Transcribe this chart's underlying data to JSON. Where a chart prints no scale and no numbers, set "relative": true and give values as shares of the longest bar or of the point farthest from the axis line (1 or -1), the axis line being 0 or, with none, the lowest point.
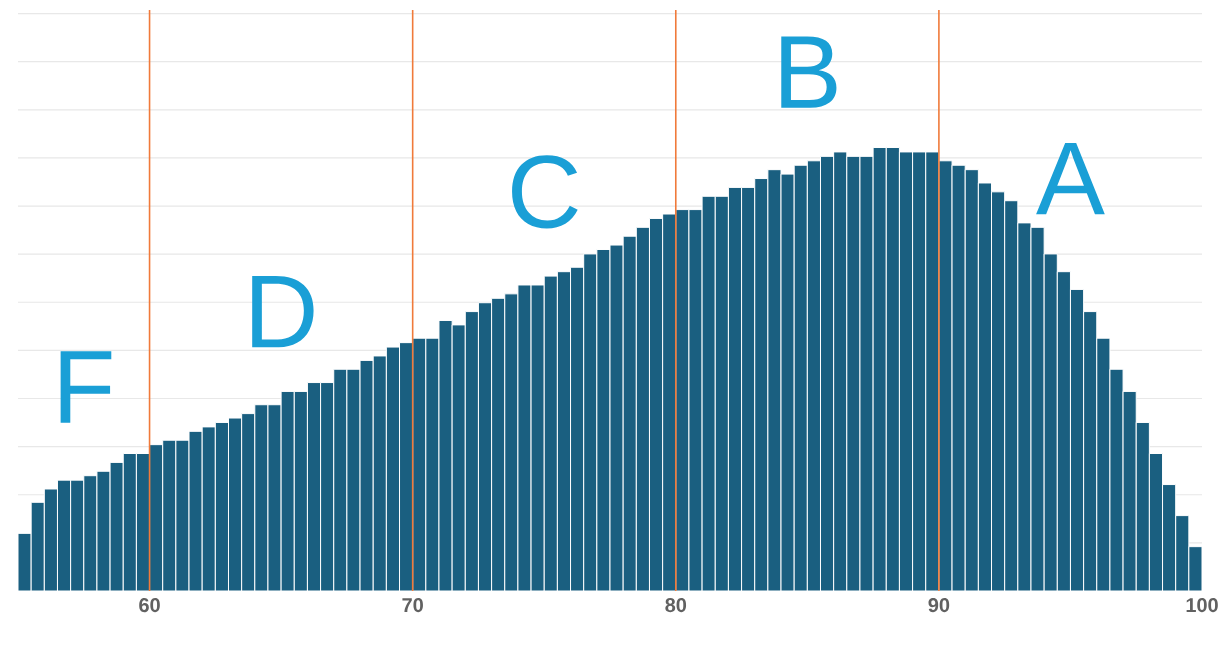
{
  "chart_data": {
    "type": "bar",
    "relative": true,
    "color": "#1a5f80",
    "x": [
      55.25,
      55.75,
      56.25,
      56.75,
      57.25,
      57.75,
      58.25,
      58.75,
      59.25,
      59.75,
      60.25,
      60.75,
      61.25,
      61.75,
      62.25,
      62.75,
      63.25,
      63.75,
      64.25,
      64.75,
      65.25,
      65.75,
      66.25,
      66.75,
      67.25,
      67.75,
      68.25,
      68.75,
      69.25,
      69.75,
      70.25,
      70.75,
      71.25,
      71.75,
      72.25,
      72.75,
      73.25,
      73.75,
      74.25,
      74.75,
      75.25,
      75.75,
      76.25,
      76.75,
      77.25,
      77.75,
      78.25,
      78.75,
      79.25,
      79.75,
      80.25,
      80.75,
      81.25,
      81.75,
      82.25,
      82.75,
      83.25,
      83.75,
      84.25,
      84.75,
      85.25,
      85.75,
      86.25,
      86.75,
      87.25,
      87.75,
      88.25,
      88.75,
      89.25,
      89.75,
      90.25,
      90.75,
      91.25,
      91.75,
      92.25,
      92.75,
      93.25,
      93.75,
      94.25,
      94.75,
      95.25,
      95.75,
      96.25,
      96.75,
      97.25,
      97.75,
      98.25,
      98.75,
      99.25,
      99.75
    ],
    "values": [
      0.13,
      0.2,
      0.23,
      0.25,
      0.25,
      0.26,
      0.27,
      0.29,
      0.31,
      0.31,
      0.33,
      0.34,
      0.34,
      0.36,
      0.37,
      0.38,
      0.39,
      0.4,
      0.42,
      0.42,
      0.45,
      0.45,
      0.47,
      0.47,
      0.5,
      0.5,
      0.52,
      0.53,
      0.55,
      0.56,
      0.57,
      0.57,
      0.61,
      0.6,
      0.63,
      0.65,
      0.66,
      0.67,
      0.69,
      0.69,
      0.71,
      0.72,
      0.73,
      0.76,
      0.77,
      0.78,
      0.8,
      0.82,
      0.84,
      0.85,
      0.86,
      0.86,
      0.89,
      0.89,
      0.91,
      0.91,
      0.93,
      0.95,
      0.94,
      0.96,
      0.97,
      0.98,
      0.99,
      0.98,
      0.98,
      1.0,
      1.0,
      0.99,
      0.99,
      0.99,
      0.97,
      0.96,
      0.95,
      0.92,
      0.9,
      0.88,
      0.83,
      0.82,
      0.76,
      0.72,
      0.68,
      0.63,
      0.57,
      0.5,
      0.45,
      0.38,
      0.31,
      0.24,
      0.17,
      0.1
    ],
    "xlim": [
      55,
      100
    ],
    "xticks": [
      60,
      70,
      80,
      90,
      100
    ],
    "grid": "y",
    "ref_lines": [
      {
        "axis": "x",
        "value": 60,
        "color": "#f07a3a"
      },
      {
        "axis": "x",
        "value": 70,
        "color": "#f07a3a"
      },
      {
        "axis": "x",
        "value": 80,
        "color": "#f07a3a"
      },
      {
        "axis": "x",
        "value": 90,
        "color": "#f07a3a"
      }
    ],
    "annotations": [
      "F",
      "D",
      "C",
      "B",
      "A"
    ]
  }
}
